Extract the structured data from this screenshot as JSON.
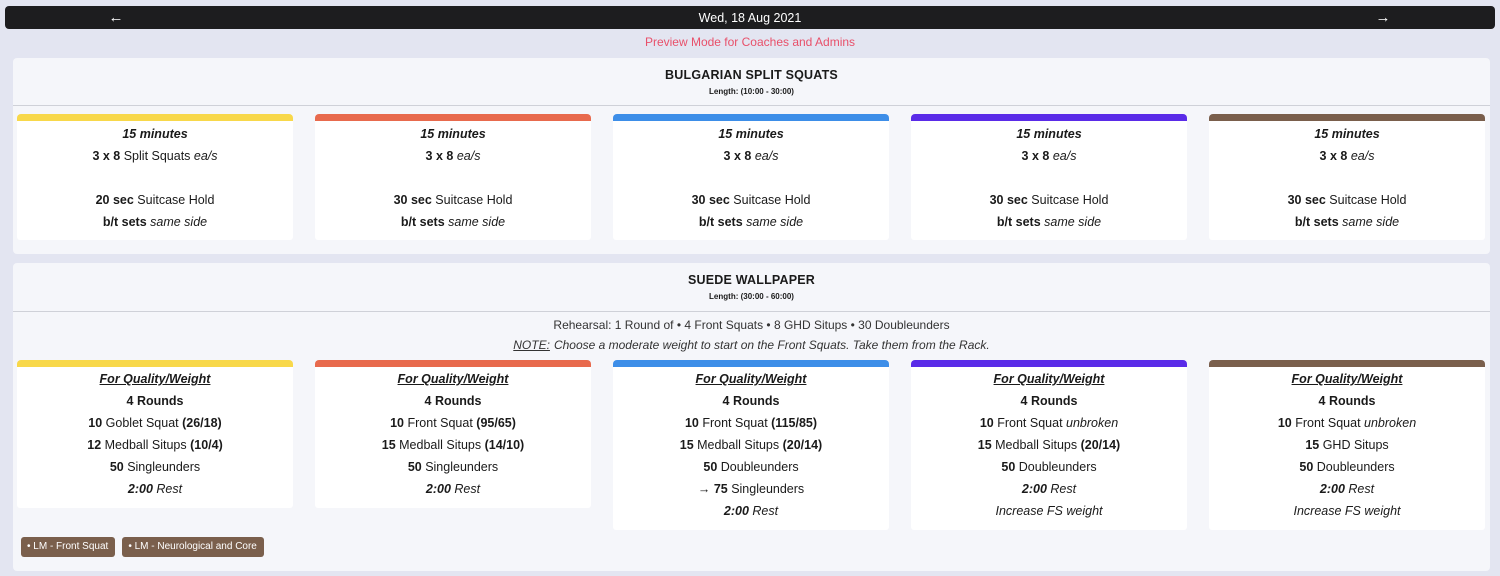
{
  "header": {
    "date": "Wed, 18 Aug 2021",
    "prev_icon": "←",
    "next_icon": "→"
  },
  "preview_notice": "Preview Mode for Coaches and Admins",
  "colors": {
    "yellow": "#f8d84a",
    "orange": "#e86a4d",
    "blue": "#3d8ee8",
    "purple": "#5a2be8",
    "brown": "#7a5f4c",
    "preview_text": "#e8506a"
  },
  "section1": {
    "title": "BULGARIAN SPLIT SQUATS",
    "length": "Length: (10:00 - 30:00)",
    "cards": [
      {
        "duration": "15 minutes",
        "set_scheme": "3 x 8",
        "set_name": " Split Squats ",
        "set_suffix": "ea/s",
        "hold_time": "20 sec",
        "hold_name": " Suitcase Hold",
        "between_label": "b/t sets",
        "between_note": " same side"
      },
      {
        "duration": "15 minutes",
        "set_scheme": "3 x 8",
        "set_name": " ",
        "set_suffix": "ea/s",
        "hold_time": "30 sec",
        "hold_name": " Suitcase Hold",
        "between_label": "b/t sets",
        "between_note": " same side"
      },
      {
        "duration": "15 minutes",
        "set_scheme": "3 x 8",
        "set_name": " ",
        "set_suffix": "ea/s",
        "hold_time": "30 sec",
        "hold_name": " Suitcase Hold",
        "between_label": "b/t sets",
        "between_note": " same side"
      },
      {
        "duration": "15 minutes",
        "set_scheme": "3 x 8",
        "set_name": " ",
        "set_suffix": "ea/s",
        "hold_time": "30 sec",
        "hold_name": " Suitcase Hold",
        "between_label": "b/t sets",
        "between_note": " same side"
      },
      {
        "duration": "15 minutes",
        "set_scheme": "3 x 8",
        "set_name": " ",
        "set_suffix": "ea/s",
        "hold_time": "30 sec",
        "hold_name": " Suitcase Hold",
        "between_label": "b/t sets",
        "between_note": " same side"
      }
    ]
  },
  "section2": {
    "title": "SUEDE WALLPAPER",
    "length": "Length: (30:00 - 60:00)",
    "rehearsal": "Rehearsal: 1 Round of • 4 Front Squats • 8 GHD Situps • 30 Doubleunders",
    "note_label": "NOTE:",
    "note_text": "Choose a moderate weight to start on the Front Squats. Take them from the Rack.",
    "cards": [
      {
        "heading": "For Quality/Weight",
        "rounds": "4 Rounds",
        "l1_num": "10",
        "l1_text": " Goblet Squat ",
        "l1_load": "(26/18)",
        "l1_note": "",
        "l2_num": "12",
        "l2_text": " Medball Situps ",
        "l2_load": "(10/4)",
        "l3_num": "50",
        "l3_text": " Singleunders",
        "l4_a": "",
        "l4_b": "",
        "l4_c": "",
        "rest_time": "2:00",
        "rest_label": " Rest",
        "extra": ""
      },
      {
        "heading": "For Quality/Weight",
        "rounds": "4 Rounds",
        "l1_num": "10",
        "l1_text": " Front Squat ",
        "l1_load": "(95/65)",
        "l1_note": "",
        "l2_num": "15",
        "l2_text": " Medball Situps ",
        "l2_load": "(14/10)",
        "l3_num": "50",
        "l3_text": " Singleunders",
        "l4_a": "",
        "l4_b": "",
        "l4_c": "",
        "rest_time": "2:00",
        "rest_label": " Rest",
        "extra": ""
      },
      {
        "heading": "For Quality/Weight",
        "rounds": "4 Rounds",
        "l1_num": "10",
        "l1_text": " Front Squat ",
        "l1_load": "(115/85)",
        "l1_note": "",
        "l2_num": "15",
        "l2_text": " Medball Situps ",
        "l2_load": "(20/14)",
        "l3_num": "50",
        "l3_text": " Doubleunders",
        "l4_a": "→ ",
        "l4_b": "75",
        "l4_c": " Singleunders",
        "rest_time": "2:00",
        "rest_label": " Rest",
        "extra": ""
      },
      {
        "heading": "For Quality/Weight",
        "rounds": "4 Rounds",
        "l1_num": "10",
        "l1_text": " Front Squat ",
        "l1_load": "",
        "l1_note": "unbroken",
        "l2_num": "15",
        "l2_text": " Medball Situps ",
        "l2_load": "(20/14)",
        "l3_num": "50",
        "l3_text": " Doubleunders",
        "l4_a": "",
        "l4_b": "",
        "l4_c": "",
        "rest_time": "2:00",
        "rest_label": " Rest",
        "extra": "Increase FS weight"
      },
      {
        "heading": "For Quality/Weight",
        "rounds": "4 Rounds",
        "l1_num": "10",
        "l1_text": " Front Squat ",
        "l1_load": "",
        "l1_note": "unbroken",
        "l2_num": "15",
        "l2_text": " GHD Situps",
        "l2_load": "",
        "l3_num": "50",
        "l3_text": " Doubleunders",
        "l4_a": "",
        "l4_b": "",
        "l4_c": "",
        "rest_time": "2:00",
        "rest_label": " Rest",
        "extra": "Increase FS weight"
      }
    ]
  },
  "tags": [
    "• LM - Front Squat",
    "• LM - Neurological and Core"
  ]
}
